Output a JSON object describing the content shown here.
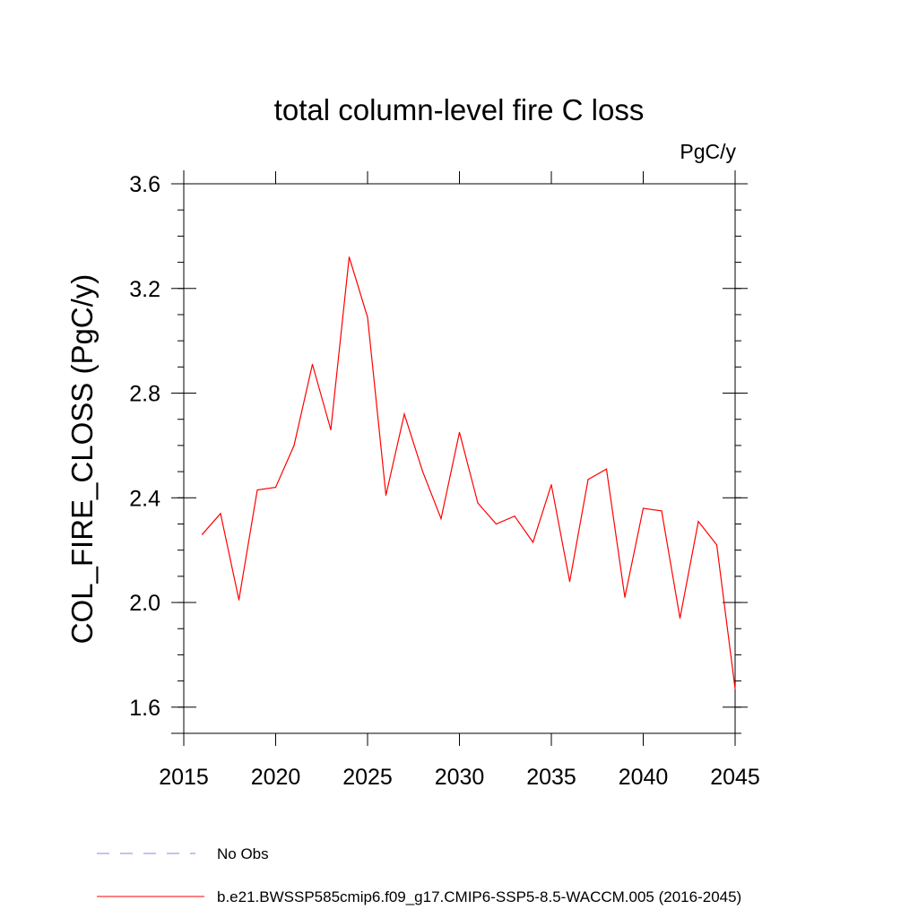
{
  "chart_data": {
    "type": "line",
    "title": "total column-level fire C loss",
    "units_label": "PgC/y",
    "xlabel": "",
    "ylabel": "COL_FIRE_CLOSS  (PgC/y)",
    "xlim": [
      2015,
      2045
    ],
    "ylim": [
      1.5,
      3.6
    ],
    "x_ticks": [
      2015,
      2020,
      2025,
      2030,
      2035,
      2040,
      2045
    ],
    "y_ticks": [
      1.6,
      2.0,
      2.4,
      2.8,
      3.2,
      3.6
    ],
    "y_tick_labels": [
      "1.6",
      "2.0",
      "2.4",
      "2.8",
      "3.2",
      "3.6"
    ],
    "grid": false,
    "legend_position": "bottom",
    "series": [
      {
        "name": "b.e21.BWSSP585cmip6.f09_g17.CMIP6-SSP5-8.5-WACCM.005 (2016-2045)",
        "color": "#ff0000",
        "line_style": "solid",
        "x": [
          2016,
          2017,
          2018,
          2019,
          2020,
          2021,
          2022,
          2023,
          2024,
          2025,
          2026,
          2027,
          2028,
          2029,
          2030,
          2031,
          2032,
          2033,
          2034,
          2035,
          2036,
          2037,
          2038,
          2039,
          2040,
          2041,
          2042,
          2043,
          2044,
          2045
        ],
        "values": [
          2.26,
          2.34,
          2.01,
          2.43,
          2.44,
          2.6,
          2.91,
          2.66,
          3.32,
          3.09,
          2.41,
          2.72,
          2.5,
          2.32,
          2.65,
          2.38,
          2.3,
          2.33,
          2.23,
          2.45,
          2.08,
          2.47,
          2.51,
          2.02,
          2.36,
          2.35,
          1.94,
          2.31,
          2.22,
          1.67
        ]
      }
    ],
    "legend": [
      {
        "label": "No Obs",
        "color": "#8a8ad0",
        "line_style": "dashed"
      },
      {
        "label": "b.e21.BWSSP585cmip6.f09_g17.CMIP6-SSP5-8.5-WACCM.005 (2016-2045)",
        "color": "#ff0000",
        "line_style": "solid"
      }
    ]
  }
}
